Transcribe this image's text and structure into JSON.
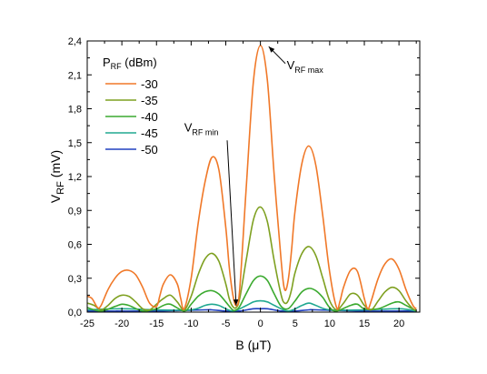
{
  "chart_data": {
    "type": "line",
    "xlabel": "B (μT)",
    "ylabel": {
      "main": "V",
      "sub": "RF",
      "rest": " (mV)"
    },
    "xlim": [
      -25,
      23
    ],
    "ylim": [
      0,
      2.4
    ],
    "x_ticks": [
      -25,
      -20,
      -15,
      -10,
      -5,
      0,
      5,
      10,
      15,
      20
    ],
    "x_tick_labels": [
      "-25",
      "-20",
      "-15",
      "-10",
      "-5",
      "0",
      "5",
      "10",
      "15",
      "20"
    ],
    "y_ticks": [
      0,
      0.3,
      0.6,
      0.9,
      1.2,
      1.5,
      1.8,
      2.1,
      2.4
    ],
    "y_tick_labels": [
      "0,0",
      "0,3",
      "0,6",
      "0,9",
      "1,2",
      "1,5",
      "1,8",
      "2,1",
      "2,4"
    ],
    "grid": false,
    "legend": {
      "title_main": "P",
      "title_sub": "RF",
      "title_rest": " (dBm)",
      "placement": "top-left"
    },
    "series": [
      {
        "name": "-30",
        "color": "#f07828",
        "x": [
          -25,
          -24.3,
          -23.5,
          -23,
          -22,
          -21,
          -20,
          -19,
          -18,
          -17,
          -16,
          -15,
          -14.5,
          -14,
          -13,
          -12,
          -11.5,
          -11,
          -10,
          -9,
          -8,
          -7,
          -6,
          -5,
          -4.5,
          -4,
          -3.5,
          -3,
          -2,
          -1,
          0,
          1,
          2,
          3,
          3.5,
          4,
          4.5,
          5,
          6,
          7,
          8,
          9,
          10,
          11,
          11.5,
          12,
          13,
          14,
          15,
          15.5,
          16,
          17,
          18,
          19,
          20,
          21,
          22,
          22.5
        ],
        "y": [
          0.14,
          0.12,
          0.04,
          0.06,
          0.2,
          0.3,
          0.36,
          0.37,
          0.33,
          0.22,
          0.08,
          0.05,
          0.15,
          0.25,
          0.33,
          0.25,
          0.12,
          0.03,
          0.3,
          0.78,
          1.15,
          1.37,
          1.26,
          0.75,
          0.4,
          0.16,
          0.06,
          0.2,
          1.15,
          2.05,
          2.36,
          2.05,
          1.2,
          0.45,
          0.2,
          0.28,
          0.55,
          0.9,
          1.32,
          1.47,
          1.3,
          0.85,
          0.35,
          0.04,
          0.1,
          0.22,
          0.37,
          0.36,
          0.12,
          0.03,
          0.1,
          0.3,
          0.43,
          0.47,
          0.38,
          0.2,
          0.06,
          0.03
        ]
      },
      {
        "name": "-35",
        "color": "#7ea020",
        "x": [
          -25,
          -24,
          -23,
          -22,
          -21,
          -20,
          -19,
          -18,
          -17,
          -16,
          -15,
          -14,
          -13,
          -12,
          -11,
          -10,
          -9,
          -8,
          -7,
          -6,
          -5,
          -4.5,
          -4,
          -3.5,
          -3,
          -2,
          -1,
          0,
          1,
          2,
          3,
          3.5,
          4,
          4.5,
          5,
          6,
          7,
          8,
          9,
          10,
          11,
          12,
          13,
          14,
          15,
          16,
          17,
          18,
          19,
          20,
          21,
          22,
          22.5
        ],
        "y": [
          0.08,
          0.06,
          0.02,
          0.06,
          0.12,
          0.15,
          0.14,
          0.09,
          0.03,
          0.02,
          0.07,
          0.12,
          0.15,
          0.09,
          0.02,
          0.14,
          0.33,
          0.47,
          0.52,
          0.45,
          0.25,
          0.12,
          0.05,
          0.04,
          0.12,
          0.48,
          0.82,
          0.93,
          0.8,
          0.45,
          0.15,
          0.08,
          0.1,
          0.2,
          0.35,
          0.52,
          0.58,
          0.5,
          0.3,
          0.1,
          0.02,
          0.08,
          0.16,
          0.15,
          0.06,
          0.02,
          0.1,
          0.18,
          0.22,
          0.19,
          0.1,
          0.03,
          0.02
        ]
      },
      {
        "name": "-40",
        "color": "#3caa30",
        "x": [
          -25,
          -23,
          -21,
          -20,
          -19,
          -17,
          -15,
          -14,
          -13,
          -11,
          -10,
          -9,
          -8,
          -7,
          -6,
          -5,
          -4,
          -3.5,
          -3,
          -2,
          -1,
          0,
          1,
          2,
          3,
          4,
          5,
          6,
          7,
          8,
          9,
          10,
          11,
          13,
          14,
          15,
          17,
          19,
          20,
          21,
          22.5
        ],
        "y": [
          0.04,
          0.01,
          0.05,
          0.07,
          0.06,
          0.01,
          0.03,
          0.06,
          0.07,
          0.01,
          0.07,
          0.14,
          0.18,
          0.19,
          0.16,
          0.09,
          0.02,
          0.02,
          0.05,
          0.17,
          0.28,
          0.32,
          0.28,
          0.16,
          0.05,
          0.03,
          0.1,
          0.18,
          0.21,
          0.19,
          0.13,
          0.04,
          0.01,
          0.06,
          0.07,
          0.03,
          0.03,
          0.08,
          0.09,
          0.06,
          0.01
        ]
      },
      {
        "name": "-45",
        "color": "#20a890",
        "x": [
          -25,
          -20,
          -15,
          -10,
          -8,
          -7,
          -6,
          -4,
          -2,
          -1,
          0,
          1,
          2,
          4,
          6,
          7,
          8,
          10,
          15,
          20,
          22.5
        ],
        "y": [
          0.02,
          0.03,
          0.02,
          0.02,
          0.06,
          0.07,
          0.06,
          0.01,
          0.06,
          0.09,
          0.1,
          0.09,
          0.06,
          0.01,
          0.06,
          0.08,
          0.06,
          0.02,
          0.02,
          0.03,
          0.01
        ]
      },
      {
        "name": "-50",
        "color": "#2040c0",
        "x": [
          -25,
          -15,
          -8,
          -7,
          -5,
          -3,
          -1,
          0,
          1,
          3,
          5,
          7,
          8,
          15,
          22.5
        ],
        "y": [
          0.01,
          0.01,
          0.02,
          0.02,
          0.01,
          0.01,
          0.03,
          0.03,
          0.03,
          0.01,
          0.01,
          0.02,
          0.02,
          0.01,
          0.01
        ]
      }
    ],
    "annotations": [
      {
        "main": "V",
        "sub": "RF max",
        "text_x": 3.8,
        "text_y": 2.15,
        "arrow_from": [
          3.6,
          2.2
        ],
        "arrow_to": [
          1.2,
          2.35
        ]
      },
      {
        "main": "V",
        "sub": "RF min",
        "text_x": -11,
        "text_y": 1.6,
        "arrow_from": [
          -4.8,
          1.52
        ],
        "arrow_to": [
          -3.5,
          0.06
        ]
      }
    ]
  }
}
